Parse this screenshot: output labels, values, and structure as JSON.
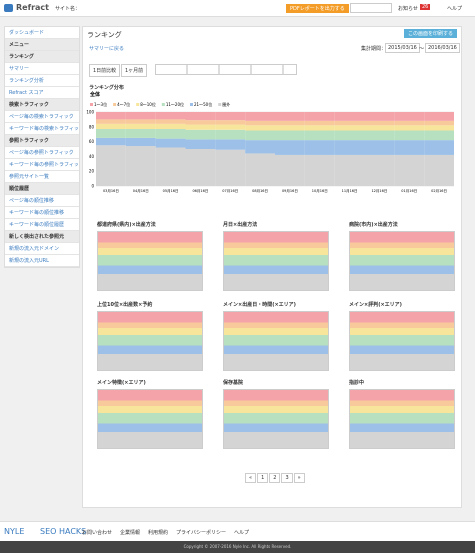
{
  "header": {
    "logo": "Refract",
    "site": "サイト名：",
    "pdf": "PDFレポートを出力する",
    "news": "お知らせ",
    "news_count": "26",
    "help": "ヘルプ"
  },
  "sidebar": {
    "dashboard": "ダッシュボード",
    "menu": "メニュー",
    "groups": [
      {
        "title": "ランキング",
        "items": [
          "サマリー",
          "ランキング分析",
          "Refract スコア"
        ]
      },
      {
        "title": "検索トラフィック",
        "items": [
          "ページ毎の検索トラフィック",
          "キーワード毎の検索トラフィック"
        ]
      },
      {
        "title": "参照トラフィック",
        "items": [
          "ページ毎の参照トラフィック",
          "キーワード毎の参照トラフィック",
          "参照元サイト一覧"
        ]
      },
      {
        "title": "順位履歴",
        "items": [
          "ページ毎の順位推移",
          "キーワード毎の順位推移",
          "キーワード毎の順位履歴"
        ]
      },
      {
        "title": "新しく検出された参照元",
        "items": [
          "新規の流入元ドメイン",
          "新規の流入元URL"
        ]
      }
    ]
  },
  "main": {
    "title": "ランキング",
    "print": "この画面を印刷する",
    "back": "サマリーに戻る",
    "period_label": "集計期間：",
    "from": "2015/03/16",
    "sep": "～",
    "to": "2016/03/16",
    "tabs": [
      "1日前比較",
      "1ヶ月前"
    ],
    "section": "ランキング分布",
    "small_titles": [
      "都道府県(県内)×出産方法",
      "月日×出産方法",
      "病院(市内)×出産方法",
      "上位10位×出産数×予約",
      "メイン×出産日・時間(×エリア)",
      "メイン×評判(×エリア)",
      "メイン特徴(×エリア)",
      "保存基院",
      "指診中"
    ],
    "pages": [
      "«",
      "1",
      "2",
      "3",
      "»"
    ]
  },
  "chart_data": {
    "type": "bar",
    "subtitle": "全体",
    "categories": [
      "03月16日",
      "04月16日",
      "05月16日",
      "06月16日",
      "07月16日",
      "08月16日",
      "09月16日",
      "10月16日",
      "11月16日",
      "12月16日",
      "01月16日",
      "02月16日"
    ],
    "series": [
      {
        "name": "1～3位",
        "color": "#f4a4a8",
        "values": [
          10,
          10,
          10,
          11,
          11,
          12,
          12,
          12,
          12,
          12,
          12,
          12
        ]
      },
      {
        "name": "4～7位",
        "color": "#f8c99a",
        "values": [
          6,
          6,
          6,
          6,
          6,
          6,
          6,
          6,
          6,
          6,
          6,
          6
        ]
      },
      {
        "name": "8～10位",
        "color": "#f7e59c",
        "values": [
          7,
          7,
          7,
          7,
          7,
          7,
          7,
          7,
          7,
          7,
          7,
          7
        ]
      },
      {
        "name": "11～20位",
        "color": "#b7e0c0",
        "values": [
          12,
          12,
          13,
          13,
          13,
          13,
          13,
          13,
          13,
          13,
          13,
          13
        ]
      },
      {
        "name": "21～50位",
        "color": "#9cc0e8",
        "values": [
          10,
          11,
          12,
          13,
          14,
          18,
          20,
          20,
          20,
          20,
          20,
          20
        ]
      },
      {
        "name": "圏外",
        "color": "#d4d4d4",
        "values": [
          55,
          54,
          52,
          50,
          49,
          44,
          42,
          42,
          42,
          42,
          42,
          42
        ]
      }
    ],
    "ylim": [
      0,
      100
    ],
    "yticks": [
      0,
      20,
      40,
      60,
      80,
      100
    ],
    "grid": true
  },
  "footer": {
    "brand1": "NYLE",
    "brand2": "SEO HACKS",
    "links": [
      "お問い合わせ",
      "企業情報",
      "利用規約",
      "プライバシーポリシー",
      "ヘルプ"
    ],
    "copyright": "Copyright © 2007-2016 Nyle Inc. All Rights Reserved."
  }
}
